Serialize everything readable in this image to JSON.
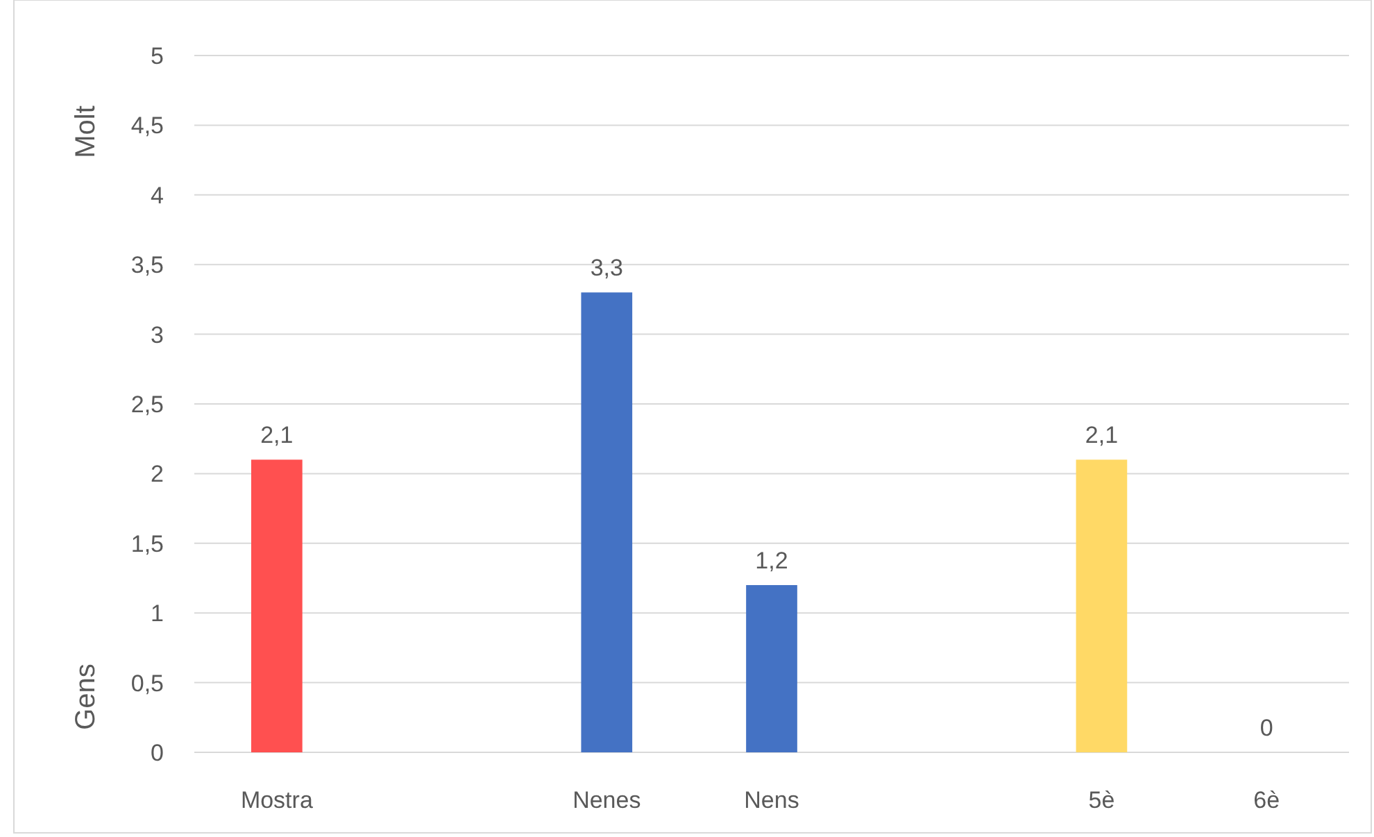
{
  "chart_data": {
    "type": "bar",
    "categories": [
      "Mostra",
      null,
      "Nenes",
      "Nens",
      null,
      "5è",
      "6è"
    ],
    "values": [
      2.1,
      null,
      3.3,
      1.2,
      null,
      2.1,
      0
    ],
    "colors": [
      "#ff5050",
      null,
      "#4472c4",
      "#4472c4",
      null,
      "#ffd966",
      "#ffd966"
    ],
    "value_labels": [
      "2,1",
      null,
      "3,3",
      "1,2",
      null,
      "2,1",
      "0"
    ],
    "ylim": [
      0,
      5
    ],
    "yticks": [
      0,
      {
        "value": 0.5,
        "label": "0,5"
      },
      1,
      {
        "value": 1.5,
        "label": "1,5"
      },
      2,
      {
        "value": 2.5,
        "label": "2,5"
      },
      3,
      {
        "value": 3.5,
        "label": "3,5"
      },
      4,
      {
        "value": 4.5,
        "label": "4,5"
      },
      5
    ],
    "grid": "y",
    "annotations": [
      "Molt",
      "Gens"
    ]
  }
}
